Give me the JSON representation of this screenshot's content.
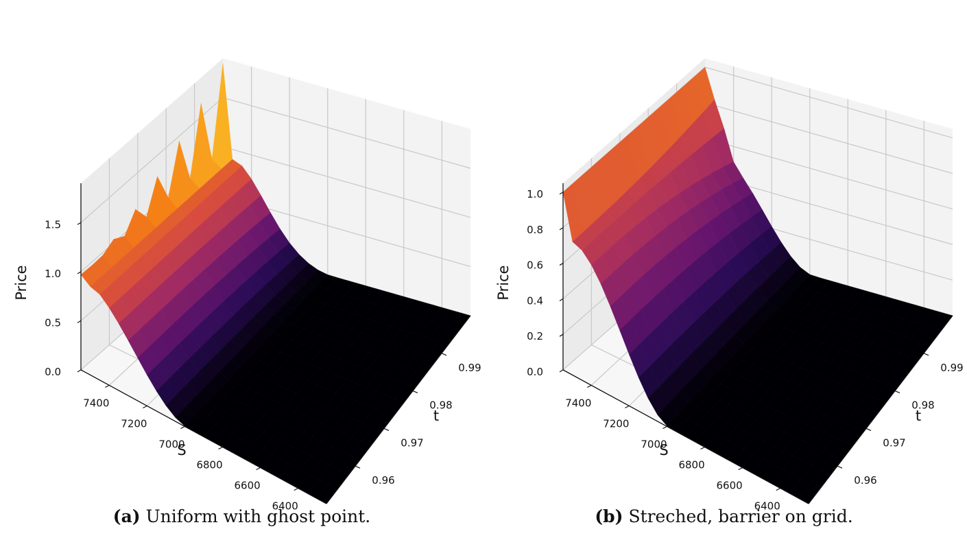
{
  "chart_data": [
    {
      "type": "surface3d",
      "caption_label": "(a)",
      "caption_text": "Uniform with ghost point.",
      "xlabel": "S",
      "ylabel": "t",
      "zlabel": "Price",
      "x_ticks": [
        "7400",
        "7200",
        "7000",
        "6800",
        "6600",
        "6400"
      ],
      "y_ticks": [
        "0.96",
        "0.97",
        "0.98",
        "0.99"
      ],
      "z_ticks": [
        "0.0",
        "0.5",
        "1.0",
        "1.5"
      ],
      "xlim": [
        7550,
        6250
      ],
      "ylim": [
        0.95,
        1.0
      ],
      "zlim": [
        0,
        1.9
      ],
      "colormap": "inferno",
      "barrier_S": 7500,
      "surface": "payoff decays smoothly from ~1.0 at S≈7500 to 0 near S≈7000; ghost-point spikes along the barrier edge rising toward t=1 (max ≈1.85)"
    },
    {
      "type": "surface3d",
      "caption_label": "(b)",
      "caption_text": "Streched, barrier on grid.",
      "xlabel": "S",
      "ylabel": "t",
      "zlabel": "Price",
      "x_ticks": [
        "7400",
        "7200",
        "7000",
        "6800",
        "6600",
        "6400"
      ],
      "y_ticks": [
        "0.96",
        "0.97",
        "0.98",
        "0.99"
      ],
      "z_ticks": [
        "0.0",
        "0.2",
        "0.4",
        "0.6",
        "0.8",
        "1.0"
      ],
      "xlim": [
        7550,
        6250
      ],
      "ylim": [
        0.95,
        1.0
      ],
      "zlim": [
        0,
        1.05
      ],
      "colormap": "inferno",
      "barrier_S": 7500,
      "surface": "price rises to 1.0 at the barrier S≈7500 across all t, drops smoothly to 0 near S≈7000"
    }
  ]
}
